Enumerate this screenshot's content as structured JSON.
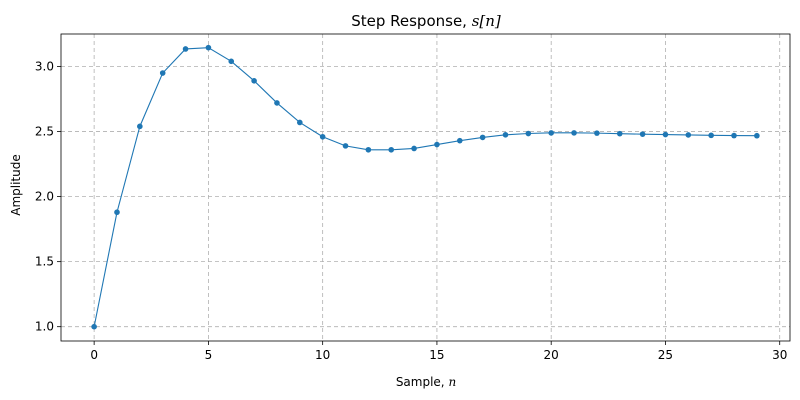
{
  "chart_data": {
    "type": "line",
    "title": "Step Response, ",
    "title_math": "s[n]",
    "xlabel": "Sample, ",
    "xlabel_math": "n",
    "ylabel": "Amplitude",
    "xlim": [
      -1.45,
      30.45
    ],
    "ylim": [
      0.89,
      3.25
    ],
    "xticks": [
      0,
      5,
      10,
      15,
      20,
      25,
      30
    ],
    "xtick_labels": [
      "0",
      "5",
      "10",
      "15",
      "20",
      "25",
      "30"
    ],
    "yticks": [
      1.0,
      1.5,
      2.0,
      2.5,
      3.0
    ],
    "ytick_labels": [
      "1.0",
      "1.5",
      "2.0",
      "2.5",
      "3.0"
    ],
    "grid": true,
    "grid_style": "dashed",
    "marker": "circle",
    "color": "#1f77b4",
    "series": [
      {
        "x": [
          0,
          1,
          2,
          3,
          4,
          5,
          6,
          7,
          8,
          9,
          10,
          11,
          12,
          13,
          14,
          15,
          16,
          17,
          18,
          19,
          20,
          21,
          22,
          23,
          24,
          25,
          26,
          27,
          28,
          29
        ],
        "values": [
          1.0,
          1.88,
          2.54,
          2.95,
          3.135,
          3.145,
          3.04,
          2.89,
          2.72,
          2.57,
          2.46,
          2.39,
          2.36,
          2.36,
          2.37,
          2.4,
          2.43,
          2.455,
          2.475,
          2.485,
          2.49,
          2.49,
          2.488,
          2.484,
          2.48,
          2.477,
          2.474,
          2.471,
          2.469,
          2.468
        ]
      }
    ]
  }
}
